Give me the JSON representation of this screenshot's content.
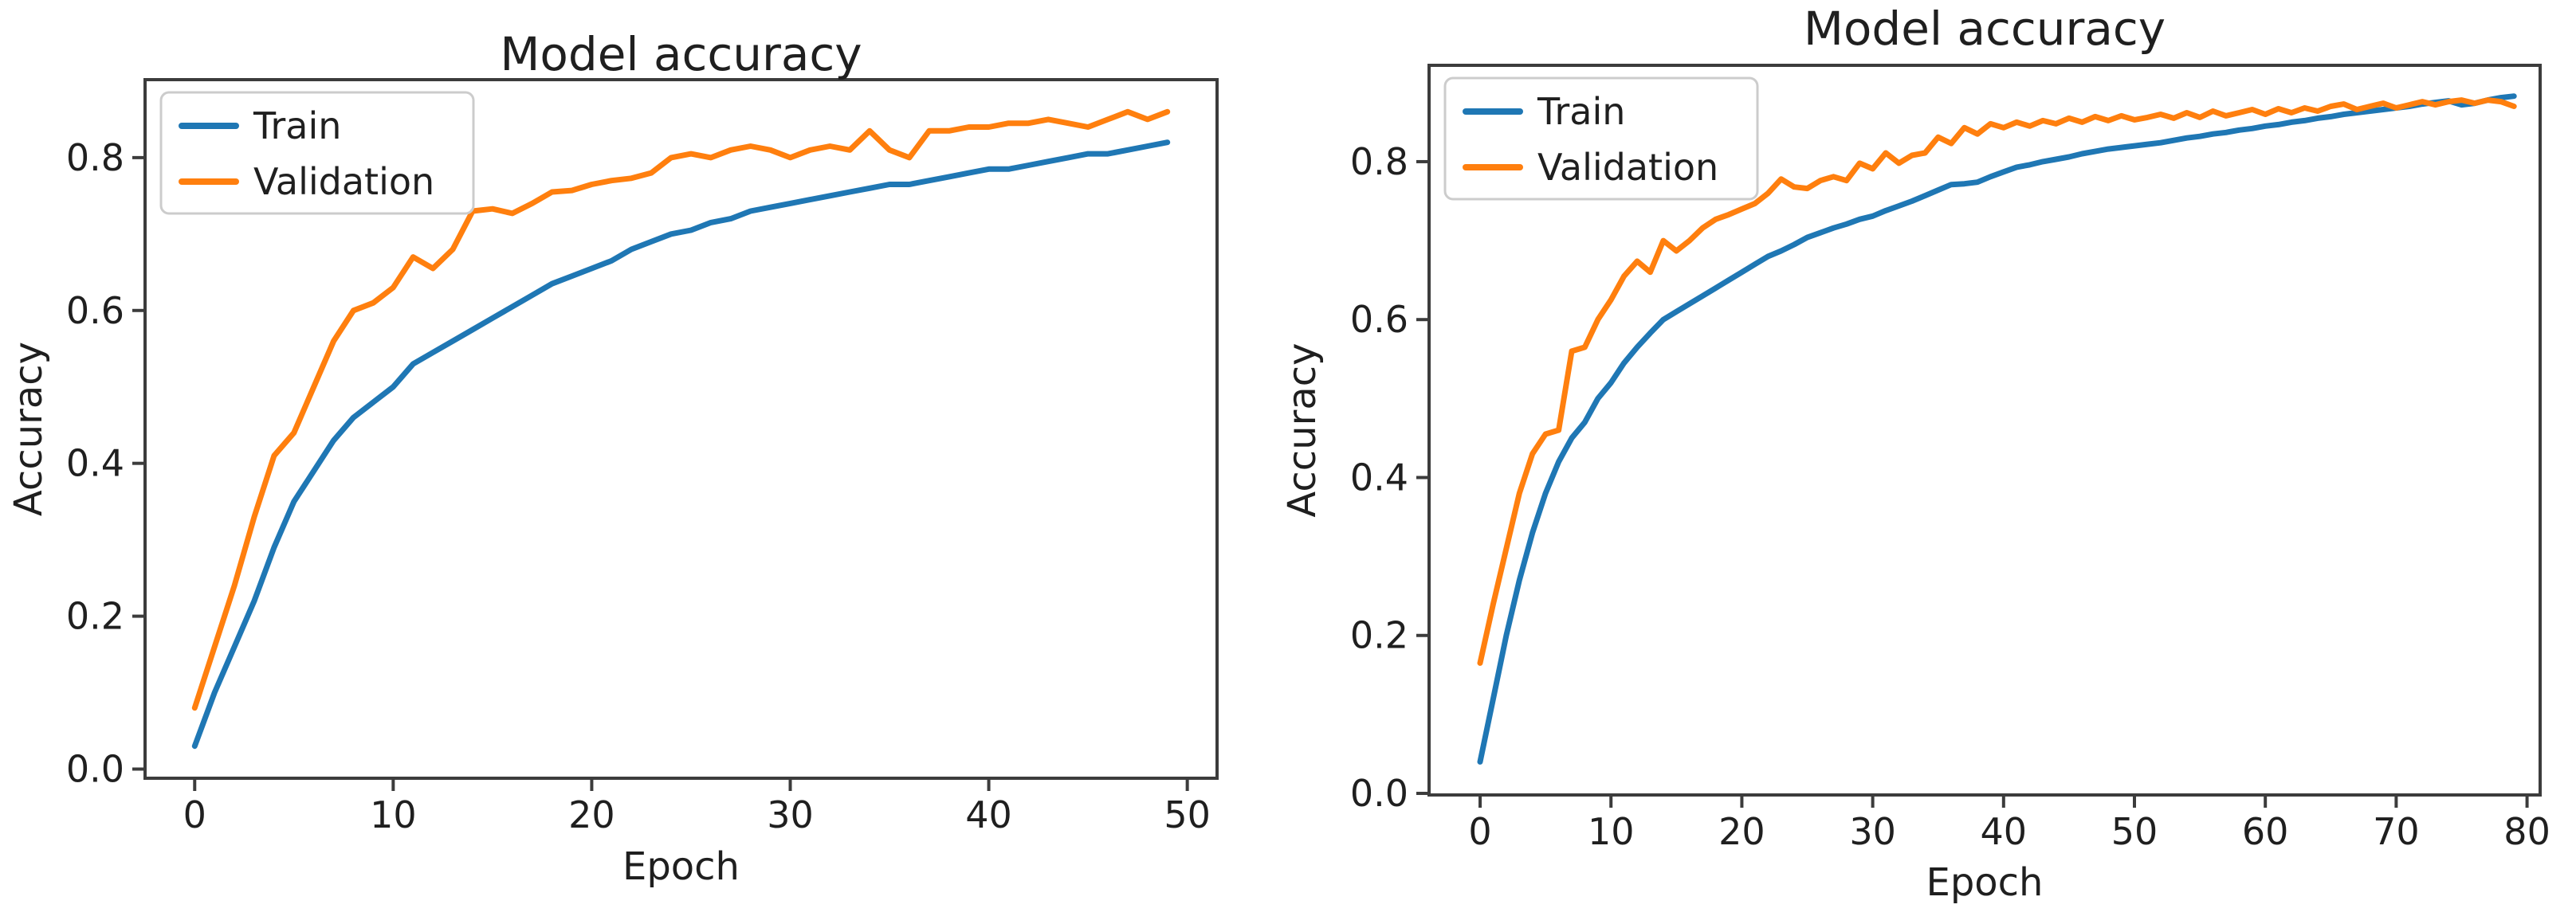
{
  "page": {
    "background": "#ffffff",
    "description_colors": {
      "train_line": "#1f77b4",
      "validation_line": "#ff7f0e",
      "spine": "#3c3c3c",
      "legend_border": "#cccccc"
    }
  },
  "chart_data": [
    {
      "type": "line",
      "title": "Model accuracy",
      "xlabel": "Epoch",
      "ylabel": "Accuracy",
      "legend_position": "upper-left",
      "grid": false,
      "x_description": "epoch index, 0 to 49, step 1",
      "x_ticks": [
        0,
        10,
        20,
        30,
        40,
        50
      ],
      "y_ticks": [
        "0.0",
        "0.2",
        "0.4",
        "0.6",
        "0.8"
      ],
      "xlim": [
        -2.5,
        51.5
      ],
      "ylim": [
        -0.012,
        0.902
      ],
      "series": [
        {
          "name": "Train",
          "color": "#1f77b4",
          "values": [
            0.03,
            0.1,
            0.16,
            0.22,
            0.29,
            0.35,
            0.39,
            0.43,
            0.46,
            0.48,
            0.5,
            0.53,
            0.545,
            0.56,
            0.575,
            0.59,
            0.605,
            0.62,
            0.635,
            0.645,
            0.655,
            0.665,
            0.68,
            0.69,
            0.7,
            0.705,
            0.715,
            0.72,
            0.73,
            0.735,
            0.74,
            0.745,
            0.75,
            0.755,
            0.76,
            0.765,
            0.765,
            0.77,
            0.775,
            0.78,
            0.785,
            0.785,
            0.79,
            0.795,
            0.8,
            0.805,
            0.805,
            0.81,
            0.815,
            0.82
          ]
        },
        {
          "name": "Validation",
          "color": "#ff7f0e",
          "values": [
            0.08,
            0.16,
            0.24,
            0.33,
            0.41,
            0.44,
            0.5,
            0.56,
            0.6,
            0.61,
            0.63,
            0.67,
            0.655,
            0.68,
            0.73,
            0.733,
            0.727,
            0.74,
            0.755,
            0.757,
            0.765,
            0.77,
            0.773,
            0.78,
            0.8,
            0.805,
            0.8,
            0.81,
            0.815,
            0.81,
            0.8,
            0.81,
            0.815,
            0.81,
            0.835,
            0.81,
            0.8,
            0.835,
            0.835,
            0.84,
            0.84,
            0.845,
            0.845,
            0.85,
            0.845,
            0.84,
            0.85,
            0.86,
            0.85,
            0.86
          ]
        }
      ]
    },
    {
      "type": "line",
      "title": "Model accuracy",
      "xlabel": "Epoch",
      "ylabel": "Accuracy",
      "legend_position": "upper-left",
      "grid": false,
      "x_description": "epoch index, 0 to 79, step 1",
      "x_ticks": [
        0,
        10,
        20,
        30,
        40,
        50,
        60,
        70,
        80
      ],
      "y_ticks": [
        "0.0",
        "0.2",
        "0.4",
        "0.6",
        "0.8"
      ],
      "xlim": [
        -3.9,
        81.0
      ],
      "ylim": [
        -0.002,
        0.922
      ],
      "series": [
        {
          "name": "Train",
          "color": "#1f77b4",
          "values": [
            0.04,
            0.12,
            0.2,
            0.27,
            0.33,
            0.38,
            0.42,
            0.45,
            0.47,
            0.5,
            0.52,
            0.545,
            0.565,
            0.583,
            0.6,
            0.61,
            0.62,
            0.63,
            0.64,
            0.65,
            0.66,
            0.67,
            0.68,
            0.687,
            0.695,
            0.704,
            0.71,
            0.716,
            0.721,
            0.727,
            0.731,
            0.738,
            0.744,
            0.75,
            0.757,
            0.764,
            0.771,
            0.772,
            0.774,
            0.781,
            0.787,
            0.793,
            0.796,
            0.8,
            0.803,
            0.806,
            0.81,
            0.813,
            0.816,
            0.818,
            0.82,
            0.822,
            0.824,
            0.827,
            0.83,
            0.832,
            0.835,
            0.837,
            0.84,
            0.842,
            0.845,
            0.847,
            0.85,
            0.852,
            0.855,
            0.857,
            0.86,
            0.862,
            0.864,
            0.866,
            0.868,
            0.87,
            0.873,
            0.875,
            0.877,
            0.872,
            0.874,
            0.878,
            0.881,
            0.883
          ]
        },
        {
          "name": "Validation",
          "color": "#ff7f0e",
          "values": [
            0.165,
            0.24,
            0.31,
            0.38,
            0.43,
            0.455,
            0.46,
            0.56,
            0.565,
            0.6,
            0.625,
            0.655,
            0.674,
            0.66,
            0.7,
            0.687,
            0.7,
            0.716,
            0.727,
            0.733,
            0.74,
            0.747,
            0.76,
            0.778,
            0.768,
            0.766,
            0.776,
            0.781,
            0.776,
            0.798,
            0.791,
            0.811,
            0.798,
            0.808,
            0.811,
            0.831,
            0.823,
            0.843,
            0.835,
            0.848,
            0.843,
            0.85,
            0.845,
            0.852,
            0.848,
            0.855,
            0.85,
            0.857,
            0.852,
            0.858,
            0.853,
            0.856,
            0.86,
            0.855,
            0.862,
            0.856,
            0.864,
            0.858,
            0.862,
            0.866,
            0.86,
            0.867,
            0.862,
            0.868,
            0.864,
            0.87,
            0.873,
            0.866,
            0.87,
            0.874,
            0.868,
            0.872,
            0.876,
            0.872,
            0.876,
            0.878,
            0.874,
            0.878,
            0.876,
            0.87
          ]
        }
      ]
    }
  ]
}
